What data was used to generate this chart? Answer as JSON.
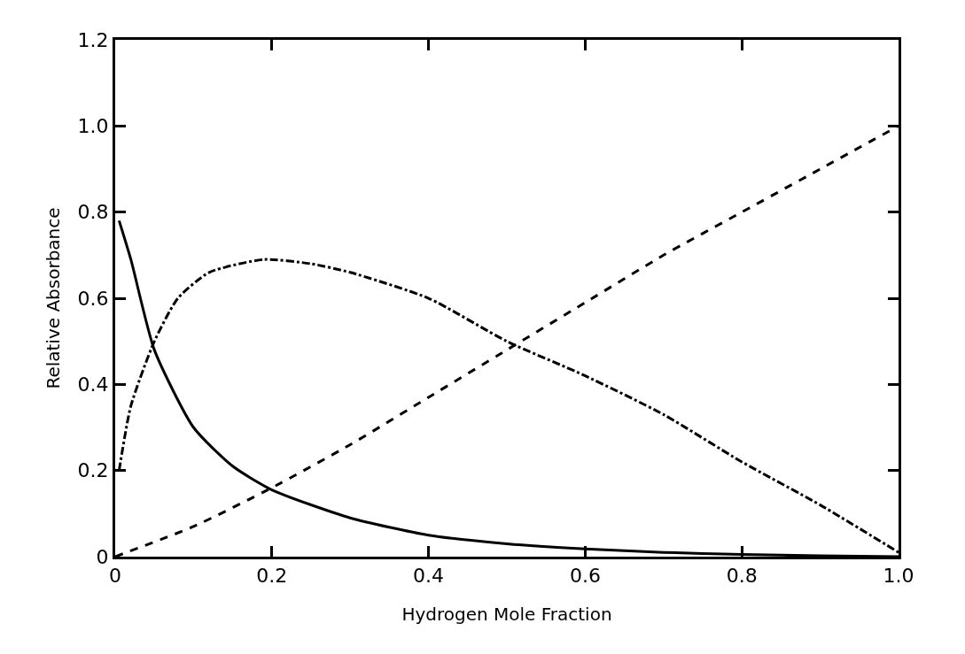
{
  "chart_data": {
    "type": "line",
    "xlabel": "Hydrogen Mole Fraction",
    "ylabel": "Relative Absorbance",
    "xlim": [
      0,
      1
    ],
    "ylim": [
      0,
      1.2
    ],
    "xticks": [
      0,
      0.2,
      0.4,
      0.6,
      0.8,
      {
        "value": 1,
        "label": "1.0"
      }
    ],
    "yticks": [
      0,
      0.2,
      0.4,
      0.6,
      0.8,
      {
        "value": 1,
        "label": "1.0"
      },
      {
        "value": 1.2,
        "label": "1.2"
      }
    ],
    "series": [
      {
        "color": "#000000",
        "line_style": "solid",
        "x": [
          0.005,
          0.02,
          0.05,
          0.1,
          0.15,
          0.2,
          0.3,
          0.4,
          0.5,
          0.6,
          0.7,
          0.8,
          0.9,
          1.0
        ],
        "values": [
          0.78,
          0.69,
          0.48,
          0.3,
          0.21,
          0.155,
          0.09,
          0.05,
          0.03,
          0.018,
          0.01,
          0.005,
          0.002,
          0
        ]
      },
      {
        "color": "#000000",
        "line_style": "dashdot",
        "x": [
          0.005,
          0.02,
          0.05,
          0.08,
          0.12,
          0.19,
          0.25,
          0.3,
          0.4,
          0.5,
          0.6,
          0.7,
          0.8,
          0.9,
          1.0
        ],
        "values": [
          0.2,
          0.35,
          0.5,
          0.6,
          0.66,
          0.69,
          0.68,
          0.66,
          0.6,
          0.5,
          0.42,
          0.33,
          0.22,
          0.12,
          0.01
        ]
      },
      {
        "color": "#000000",
        "line_style": "dashed",
        "x": [
          0,
          0.1,
          0.2,
          0.3,
          0.4,
          0.5,
          0.6,
          0.7,
          0.8,
          0.9,
          1.0
        ],
        "values": [
          0,
          0.07,
          0.16,
          0.26,
          0.37,
          0.48,
          0.59,
          0.7,
          0.8,
          0.9,
          1.0
        ]
      }
    ]
  }
}
